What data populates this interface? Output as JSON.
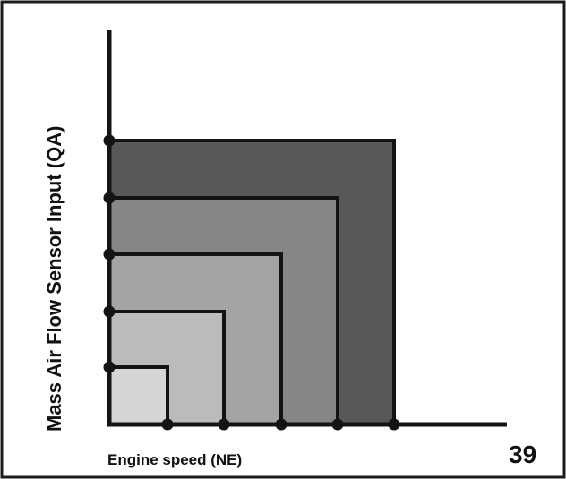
{
  "diagram": {
    "y_axis_label": "Mass Air Flow Sensor Input (QA)",
    "x_axis_label": "Engine speed (NE)",
    "figure_number": "39",
    "colors": {
      "outline": "#141414",
      "border": "#1c1c1c",
      "background": "#ffffff",
      "region_fills": [
        "#d6d6d6",
        "#bbbbbb",
        "#a4a4a4",
        "#868686",
        "#585858"
      ]
    },
    "regions": 5
  }
}
